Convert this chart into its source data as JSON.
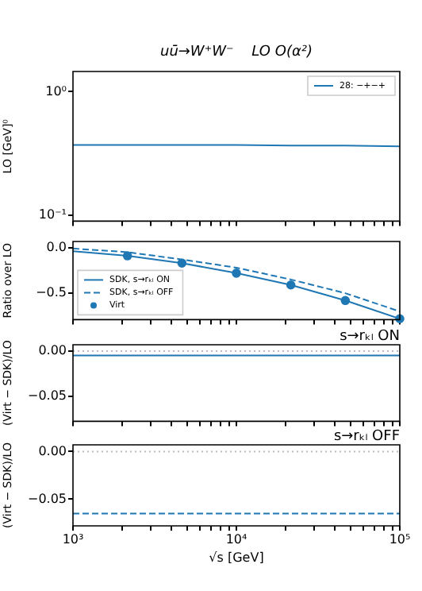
{
  "chart_data": [
    {
      "type": "line",
      "title": "uū→W⁺W⁻    LO O(α²)",
      "ylabel": "LO [GeV]⁰",
      "log": "xy",
      "legend": "top right",
      "tick_labels": "y",
      "xlim": [
        1000,
        100000
      ],
      "xticks": [
        {
          "value": 1000,
          "label": null
        },
        {
          "value": 2000,
          "label": null
        },
        {
          "value": 3000,
          "label": null
        },
        {
          "value": 4000,
          "label": null
        },
        {
          "value": 5000,
          "label": null
        },
        {
          "value": 6000,
          "label": null
        },
        {
          "value": 7000,
          "label": null
        },
        {
          "value": 8000,
          "label": null
        },
        {
          "value": 9000,
          "label": null
        },
        {
          "value": 10000,
          "label": null
        },
        {
          "value": 20000,
          "label": null
        },
        {
          "value": 30000,
          "label": null
        },
        {
          "value": 40000,
          "label": null
        },
        {
          "value": 50000,
          "label": null
        },
        {
          "value": 60000,
          "label": null
        },
        {
          "value": 70000,
          "label": null
        },
        {
          "value": 80000,
          "label": null
        },
        {
          "value": 90000,
          "label": null
        },
        {
          "value": 100000,
          "label": null
        }
      ],
      "ylim": [
        0.089,
        1.46
      ],
      "yticks": [
        {
          "value": 1,
          "label": "10⁰"
        },
        {
          "value": 0.1,
          "label": "10⁻¹"
        }
      ],
      "x": [
        1000,
        2154,
        4642,
        10000,
        21544,
        46416,
        100000
      ],
      "series": [
        {
          "name": "28: −+−+",
          "color": "#1f77b4",
          "values": [
            0.37,
            0.37,
            0.37,
            0.37,
            0.365,
            0.365,
            0.36
          ]
        }
      ]
    },
    {
      "type": "line",
      "ylabel": "Ratio over LO",
      "log": "x",
      "legend": "bottom left",
      "tick_labels": "y",
      "marker": "none",
      "xlim": [
        1000,
        100000
      ],
      "xticks": [
        {
          "value": 1000,
          "label": null
        },
        {
          "value": 2000,
          "label": null
        },
        {
          "value": 3000,
          "label": null
        },
        {
          "value": 4000,
          "label": null
        },
        {
          "value": 5000,
          "label": null
        },
        {
          "value": 6000,
          "label": null
        },
        {
          "value": 7000,
          "label": null
        },
        {
          "value": 8000,
          "label": null
        },
        {
          "value": 9000,
          "label": null
        },
        {
          "value": 10000,
          "label": null
        },
        {
          "value": 20000,
          "label": null
        },
        {
          "value": 30000,
          "label": null
        },
        {
          "value": 40000,
          "label": null
        },
        {
          "value": 50000,
          "label": null
        },
        {
          "value": 60000,
          "label": null
        },
        {
          "value": 70000,
          "label": null
        },
        {
          "value": 80000,
          "label": null
        },
        {
          "value": 90000,
          "label": null
        },
        {
          "value": 100000,
          "label": null
        }
      ],
      "ylim": [
        -0.79,
        0.067
      ],
      "yticks": [
        {
          "value": 0,
          "label": "0.0"
        },
        {
          "value": -0.5,
          "label": "−0.5"
        }
      ],
      "x": [
        1000,
        2154,
        4642,
        10000,
        21544,
        46416,
        100000
      ],
      "series": [
        {
          "name": "SDK, s→rₖₗ ON",
          "color": "#1f77b4",
          "line_style": "solid",
          "values": [
            -0.04,
            -0.09,
            -0.17,
            -0.28,
            -0.41,
            -0.58,
            -0.78
          ]
        },
        {
          "name": "SDK, s→rₖₗ OFF",
          "color": "#1f77b4",
          "line_style": "dashed",
          "values": [
            -0.01,
            -0.05,
            -0.13,
            -0.22,
            -0.35,
            -0.5,
            -0.7
          ]
        },
        {
          "name": "Virt",
          "type": "scatter",
          "marker": "circle",
          "color": "#1f77b4",
          "values": [
            null,
            -0.09,
            -0.17,
            -0.28,
            -0.41,
            -0.58,
            -0.78
          ]
        }
      ]
    },
    {
      "type": "line",
      "title": "s→rₖₗ ON",
      "ylabel": "(Virt − SDK)/LO",
      "log": "x",
      "tick_labels": "y",
      "xlim": [
        1000,
        100000
      ],
      "xticks": [
        {
          "value": 1000,
          "label": null
        },
        {
          "value": 2000,
          "label": null
        },
        {
          "value": 3000,
          "label": null
        },
        {
          "value": 4000,
          "label": null
        },
        {
          "value": 5000,
          "label": null
        },
        {
          "value": 6000,
          "label": null
        },
        {
          "value": 7000,
          "label": null
        },
        {
          "value": 8000,
          "label": null
        },
        {
          "value": 9000,
          "label": null
        },
        {
          "value": 10000,
          "label": null
        },
        {
          "value": 20000,
          "label": null
        },
        {
          "value": 30000,
          "label": null
        },
        {
          "value": 40000,
          "label": null
        },
        {
          "value": 50000,
          "label": null
        },
        {
          "value": 60000,
          "label": null
        },
        {
          "value": 70000,
          "label": null
        },
        {
          "value": 80000,
          "label": null
        },
        {
          "value": 90000,
          "label": null
        },
        {
          "value": 100000,
          "label": null
        }
      ],
      "ylim": [
        -0.078,
        0.007
      ],
      "yticks": [
        {
          "value": 0,
          "label": "0.00"
        },
        {
          "value": -0.05,
          "label": "−0.05"
        }
      ],
      "x": [
        1000,
        2154,
        4642,
        10000,
        21544,
        46416,
        100000
      ],
      "ref_lines": [
        {
          "axis": "y",
          "value": 0,
          "color": "#bbbbbb",
          "line_style": "dotted"
        }
      ],
      "series": [
        {
          "color": "#1f77b4",
          "line_style": "solid",
          "values": [
            -0.005,
            -0.005,
            -0.005,
            -0.005,
            -0.005,
            -0.005,
            -0.005
          ]
        }
      ]
    },
    {
      "type": "line",
      "title": "s→rₖₗ OFF",
      "ylabel": "(Virt − SDK)/LO",
      "xlabel": "√s [GeV]",
      "log": "x",
      "xlim": [
        1000,
        100000
      ],
      "xticks": [
        {
          "value": 1000,
          "label": "10³"
        },
        {
          "value": 2000,
          "label": null
        },
        {
          "value": 3000,
          "label": null
        },
        {
          "value": 4000,
          "label": null
        },
        {
          "value": 5000,
          "label": null
        },
        {
          "value": 6000,
          "label": null
        },
        {
          "value": 7000,
          "label": null
        },
        {
          "value": 8000,
          "label": null
        },
        {
          "value": 9000,
          "label": null
        },
        {
          "value": 10000,
          "label": "10⁴"
        },
        {
          "value": 20000,
          "label": null
        },
        {
          "value": 30000,
          "label": null
        },
        {
          "value": 40000,
          "label": null
        },
        {
          "value": 50000,
          "label": null
        },
        {
          "value": 60000,
          "label": null
        },
        {
          "value": 70000,
          "label": null
        },
        {
          "value": 80000,
          "label": null
        },
        {
          "value": 90000,
          "label": null
        },
        {
          "value": 100000,
          "label": "10⁵"
        }
      ],
      "ylim": [
        -0.078,
        0.007
      ],
      "yticks": [
        {
          "value": 0,
          "label": "0.00"
        },
        {
          "value": -0.05,
          "label": "−0.05"
        }
      ],
      "x": [
        1000,
        2154,
        4642,
        10000,
        21544,
        46416,
        100000
      ],
      "ref_lines": [
        {
          "axis": "y",
          "value": 0,
          "color": "#bbbbbb",
          "line_style": "dotted"
        }
      ],
      "series": [
        {
          "color": "#1f77b4",
          "line_style": "dashed",
          "values": [
            -0.065,
            -0.065,
            -0.065,
            -0.065,
            -0.065,
            -0.065,
            -0.065
          ]
        }
      ]
    }
  ]
}
